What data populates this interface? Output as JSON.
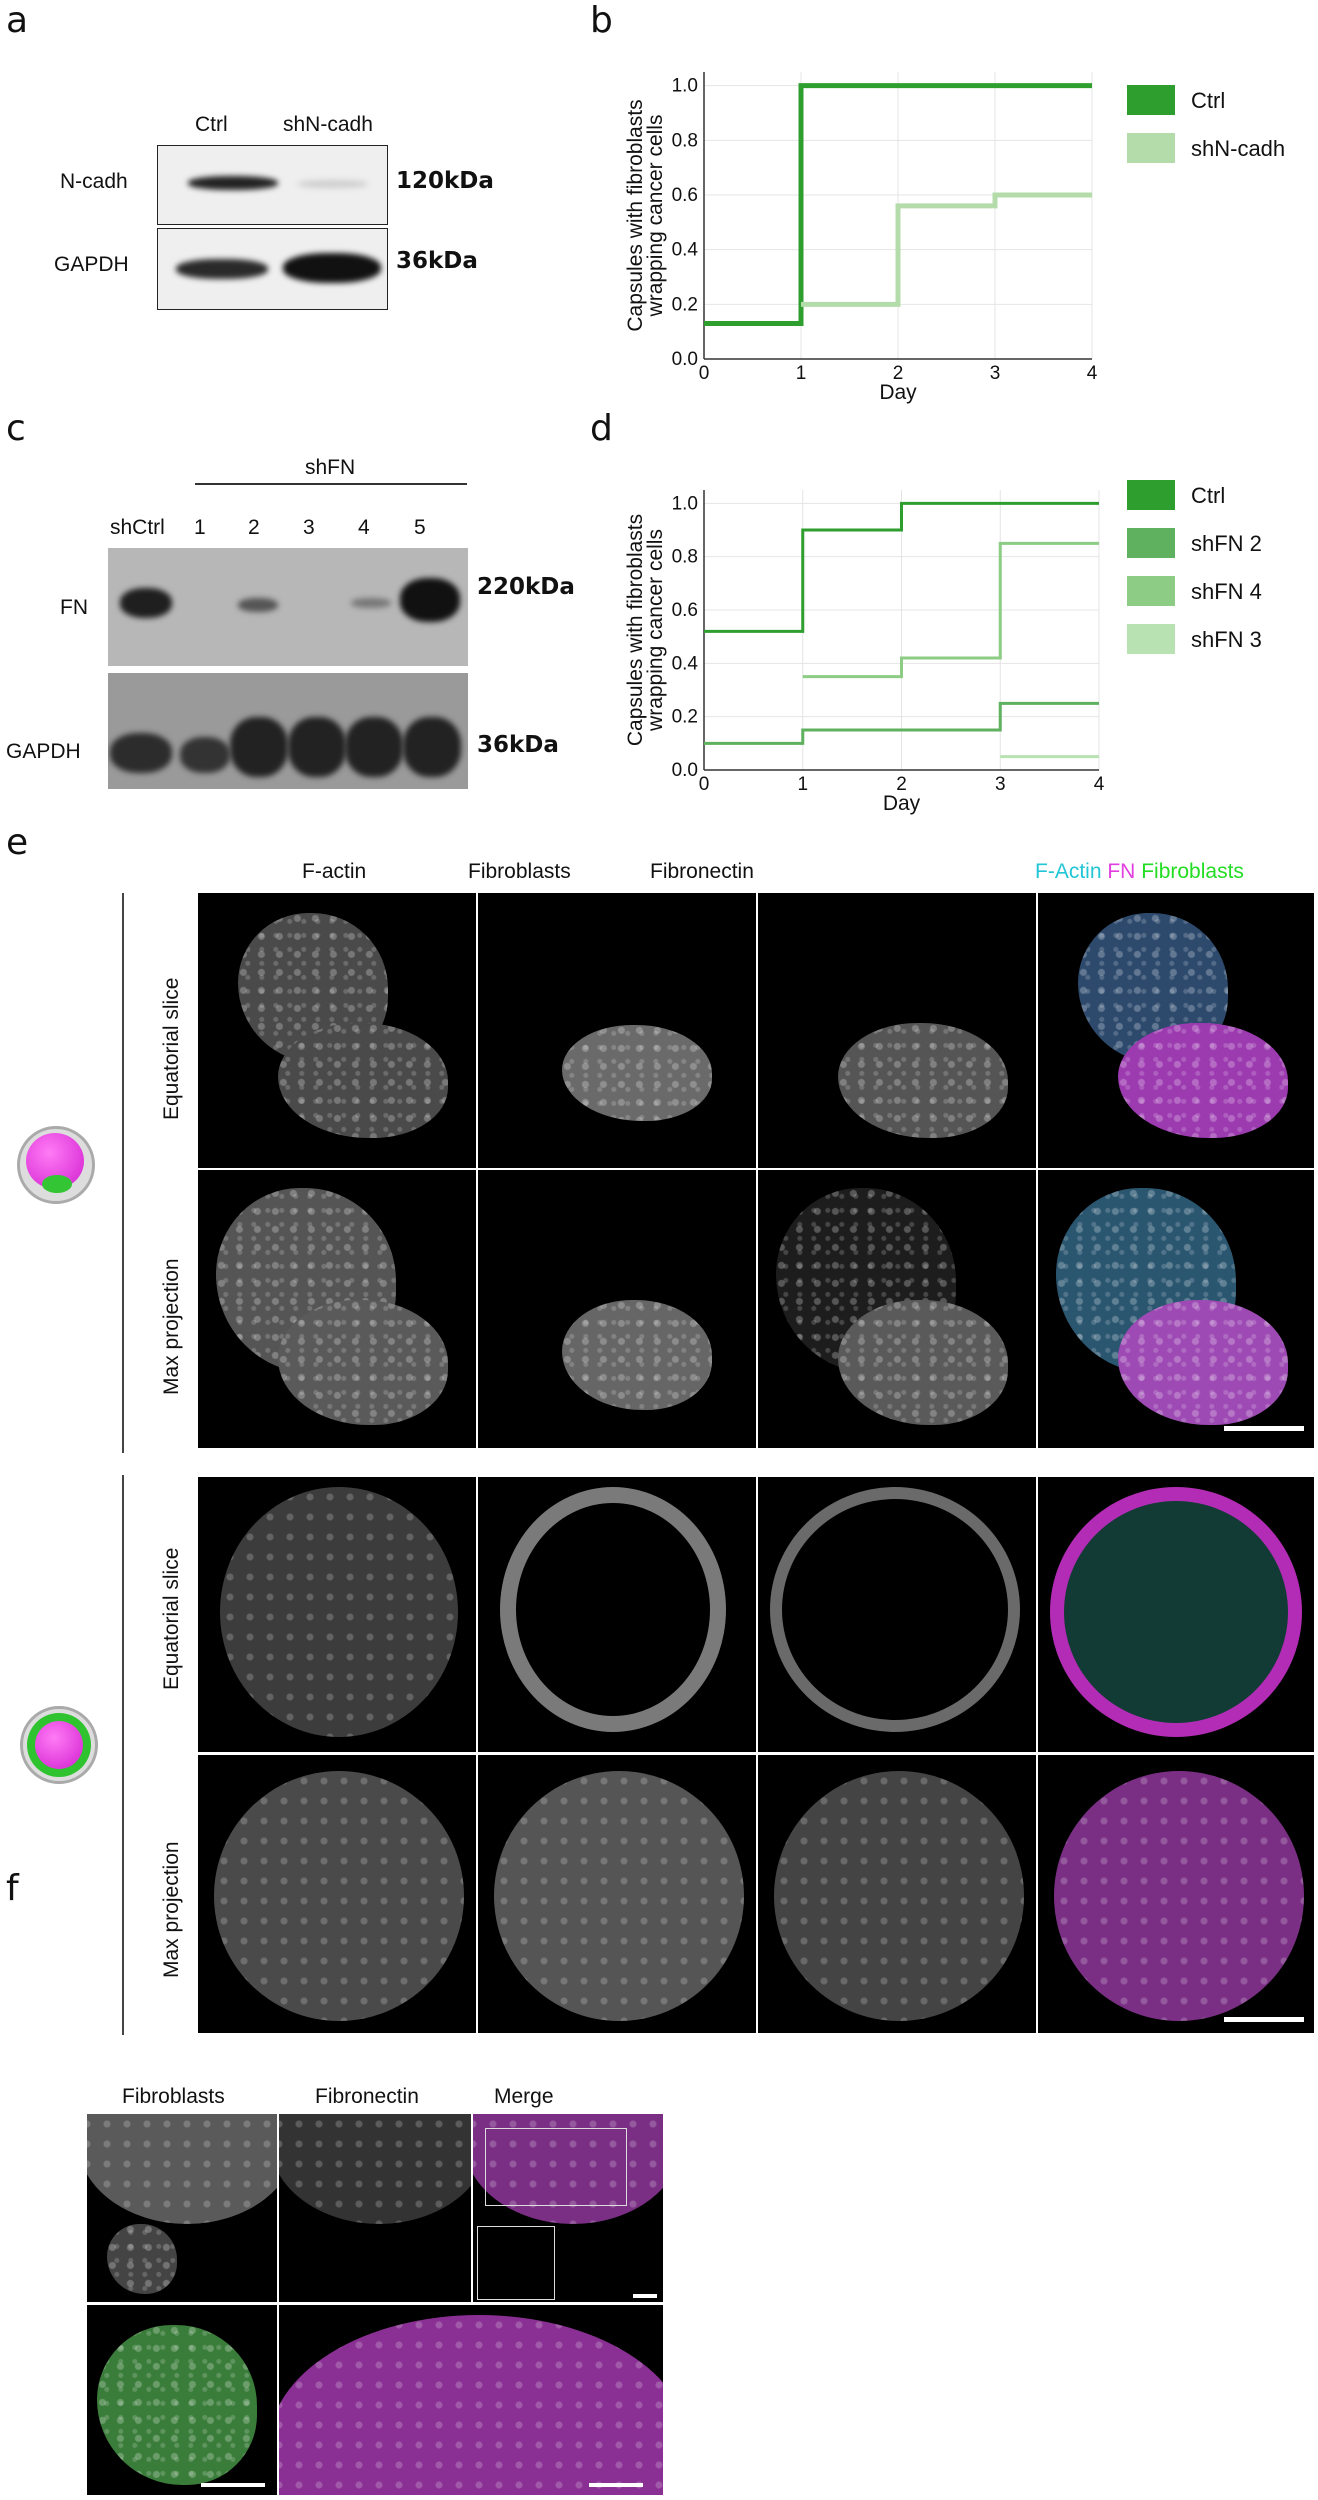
{
  "panels": {
    "a": "a",
    "b": "b",
    "c": "c",
    "d": "d",
    "e": "e",
    "f": "f"
  },
  "panel_a": {
    "lanes": [
      "Ctrl",
      "shN-cadh"
    ],
    "rows": [
      {
        "label": "N-cadh",
        "size": "120kDa"
      },
      {
        "label": "GAPDH",
        "size": "36kDa"
      }
    ]
  },
  "panel_c": {
    "group_label": "shFN",
    "lanes": [
      "shCtrl",
      "1",
      "2",
      "3",
      "4",
      "5"
    ],
    "rows": [
      {
        "label": "FN",
        "size": "220kDa"
      },
      {
        "label": "GAPDH",
        "size": "36kDa"
      }
    ]
  },
  "panel_e": {
    "columns": [
      "F-actin",
      "Fibroblasts",
      "Fibronectin"
    ],
    "merge_header": [
      {
        "text": "F-Actin",
        "color": "#22c6d6"
      },
      {
        "text": "FN",
        "color": "#e23ee0"
      },
      {
        "text": "Fibroblasts",
        "color": "#22dd22"
      }
    ],
    "rows": [
      "Equatorial slice",
      "Max projection",
      "Equatorial slice",
      "Max projection"
    ]
  },
  "panel_f": {
    "columns": [
      "Fibroblasts",
      "Fibronectin",
      "Merge"
    ]
  },
  "colors": {
    "dark_green": "#2e9e2e",
    "mid_green": "#66b866",
    "light_green": "#a9d9a0",
    "pale_green": "#c6e8bf",
    "cyan": "#22c6d6",
    "magenta": "#e23ee0",
    "green": "#22dd22"
  },
  "chart_data": [
    {
      "type": "line",
      "step": "post",
      "xlabel": "Day",
      "ylabel": "Capsules with fibroblasts wrapping cancer cells",
      "xlim": [
        0,
        4
      ],
      "ylim": [
        0,
        1.05
      ],
      "xticks": [
        0,
        1,
        2,
        3,
        4
      ],
      "yticks": [
        "0.0",
        "0.2",
        "0.4",
        "0.6",
        "0.8",
        "1.0"
      ],
      "grid": true,
      "legend_position": "right",
      "series": [
        {
          "name": "Ctrl",
          "color": "#2e9e2e",
          "x": [
            0,
            1,
            4
          ],
          "y": [
            0.13,
            1.0,
            1.0
          ]
        },
        {
          "name": "shN-cadh",
          "color": "#b3dcaa",
          "x": [
            1,
            2,
            3,
            4
          ],
          "y": [
            0.2,
            0.56,
            0.6,
            0.6
          ]
        }
      ]
    },
    {
      "type": "line",
      "step": "post",
      "xlabel": "Day",
      "ylabel": "Capsules with fibroblasts wrapping cancer cells",
      "xlim": [
        0,
        4
      ],
      "ylim": [
        0,
        1.05
      ],
      "xticks": [
        0,
        1,
        2,
        3,
        4
      ],
      "yticks": [
        "0.0",
        "0.2",
        "0.4",
        "0.6",
        "0.8",
        "1.0"
      ],
      "grid": true,
      "legend_position": "right",
      "series": [
        {
          "name": "Ctrl",
          "color": "#2e9e2e",
          "x": [
            0,
            1,
            2,
            4
          ],
          "y": [
            0.52,
            0.9,
            1.0,
            1.0
          ]
        },
        {
          "name": "shFN 2",
          "color": "#5fb05f",
          "x": [
            0,
            1,
            3,
            4
          ],
          "y": [
            0.1,
            0.15,
            0.25,
            0.25
          ]
        },
        {
          "name": "shFN 4",
          "color": "#8ccc84",
          "x": [
            1,
            2,
            3,
            4
          ],
          "y": [
            0.35,
            0.42,
            0.85,
            0.85
          ]
        },
        {
          "name": "shFN 3",
          "color": "#b9e2b2",
          "x": [
            3,
            4
          ],
          "y": [
            0.05,
            0.05
          ]
        }
      ]
    }
  ]
}
